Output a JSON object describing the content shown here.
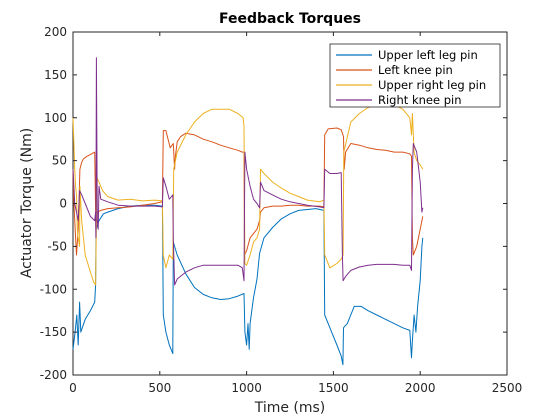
{
  "chart_data": {
    "type": "line",
    "title": "Feedback Torques",
    "xlabel": "Time (ms)",
    "ylabel": "Actuator Torque (Nm)",
    "xlim": [
      0,
      2500
    ],
    "ylim": [
      -200,
      200
    ],
    "xticks": [
      0,
      500,
      1000,
      1500,
      2000,
      2500
    ],
    "yticks": [
      -200,
      -150,
      -100,
      -50,
      0,
      50,
      100,
      150,
      200
    ],
    "grid": false,
    "legend_position": "top-right",
    "series": [
      {
        "name": "Upper left leg pin",
        "color": "#0072BD",
        "points": [
          [
            0,
            -170
          ],
          [
            12,
            -150
          ],
          [
            22,
            -130
          ],
          [
            30,
            -165
          ],
          [
            38,
            -115
          ],
          [
            45,
            -150
          ],
          [
            70,
            -135
          ],
          [
            100,
            -125
          ],
          [
            125,
            -115
          ],
          [
            130,
            -95
          ],
          [
            133,
            -30
          ],
          [
            150,
            -20
          ],
          [
            175,
            -12
          ],
          [
            200,
            -10
          ],
          [
            260,
            -6
          ],
          [
            330,
            -3
          ],
          [
            400,
            -2
          ],
          [
            470,
            -2
          ],
          [
            515,
            -3
          ],
          [
            520,
            -130
          ],
          [
            535,
            -150
          ],
          [
            555,
            -165
          ],
          [
            575,
            -175
          ],
          [
            578,
            -45
          ],
          [
            600,
            -60
          ],
          [
            650,
            -82
          ],
          [
            700,
            -98
          ],
          [
            750,
            -106
          ],
          [
            800,
            -110
          ],
          [
            850,
            -112
          ],
          [
            900,
            -111
          ],
          [
            950,
            -108
          ],
          [
            985,
            -105
          ],
          [
            990,
            -150
          ],
          [
            1000,
            -165
          ],
          [
            1008,
            -140
          ],
          [
            1015,
            -170
          ],
          [
            1020,
            -140
          ],
          [
            1040,
            -110
          ],
          [
            1060,
            -88
          ],
          [
            1075,
            -58
          ],
          [
            1100,
            -40
          ],
          [
            1150,
            -28
          ],
          [
            1200,
            -18
          ],
          [
            1250,
            -12
          ],
          [
            1300,
            -8
          ],
          [
            1350,
            -7
          ],
          [
            1400,
            -6
          ],
          [
            1445,
            -8
          ],
          [
            1450,
            -130
          ],
          [
            1480,
            -145
          ],
          [
            1520,
            -165
          ],
          [
            1545,
            -178
          ],
          [
            1555,
            -188
          ],
          [
            1558,
            -145
          ],
          [
            1580,
            -140
          ],
          [
            1620,
            -120
          ],
          [
            1660,
            -120
          ],
          [
            1700,
            -125
          ],
          [
            1750,
            -130
          ],
          [
            1800,
            -135
          ],
          [
            1850,
            -140
          ],
          [
            1900,
            -145
          ],
          [
            1940,
            -148
          ],
          [
            1950,
            -180
          ],
          [
            1955,
            -160
          ],
          [
            1965,
            -130
          ],
          [
            1975,
            -150
          ],
          [
            1985,
            -120
          ],
          [
            2000,
            -90
          ],
          [
            2010,
            -50
          ],
          [
            2015,
            -40
          ]
        ]
      },
      {
        "name": "Left knee pin",
        "color": "#D95319",
        "points": [
          [
            0,
            40
          ],
          [
            5,
            0
          ],
          [
            15,
            -40
          ],
          [
            20,
            -60
          ],
          [
            30,
            -30
          ],
          [
            40,
            40
          ],
          [
            50,
            48
          ],
          [
            60,
            52
          ],
          [
            80,
            55
          ],
          [
            100,
            57
          ],
          [
            125,
            60
          ],
          [
            132,
            -30
          ],
          [
            140,
            -10
          ],
          [
            160,
            -8
          ],
          [
            200,
            -6
          ],
          [
            260,
            -5
          ],
          [
            330,
            -4
          ],
          [
            400,
            -2
          ],
          [
            470,
            0
          ],
          [
            515,
            2
          ],
          [
            520,
            85
          ],
          [
            535,
            85
          ],
          [
            560,
            65
          ],
          [
            578,
            70
          ],
          [
            585,
            40
          ],
          [
            590,
            55
          ],
          [
            600,
            72
          ],
          [
            620,
            78
          ],
          [
            650,
            82
          ],
          [
            700,
            80
          ],
          [
            750,
            75
          ],
          [
            800,
            72
          ],
          [
            850,
            68
          ],
          [
            900,
            65
          ],
          [
            950,
            62
          ],
          [
            975,
            60
          ],
          [
            985,
            60
          ],
          [
            988,
            -60
          ],
          [
            1000,
            -55
          ],
          [
            1020,
            -40
          ],
          [
            1060,
            -30
          ],
          [
            1075,
            -20
          ],
          [
            1080,
            -10
          ],
          [
            1100,
            -5
          ],
          [
            1150,
            -3
          ],
          [
            1200,
            -3
          ],
          [
            1250,
            -2
          ],
          [
            1300,
            -2
          ],
          [
            1350,
            -3
          ],
          [
            1420,
            -3
          ],
          [
            1445,
            -4
          ],
          [
            1450,
            80
          ],
          [
            1470,
            87
          ],
          [
            1520,
            88
          ],
          [
            1545,
            86
          ],
          [
            1558,
            78
          ],
          [
            1562,
            40
          ],
          [
            1570,
            60
          ],
          [
            1600,
            70
          ],
          [
            1650,
            68
          ],
          [
            1700,
            65
          ],
          [
            1750,
            63
          ],
          [
            1800,
            62
          ],
          [
            1850,
            60
          ],
          [
            1900,
            60
          ],
          [
            1940,
            58
          ],
          [
            1950,
            55
          ],
          [
            1955,
            -40
          ],
          [
            1960,
            -60
          ],
          [
            1980,
            -50
          ],
          [
            2000,
            -30
          ],
          [
            2015,
            -15
          ]
        ]
      },
      {
        "name": "Upper right leg pin",
        "color": "#EDB120",
        "points": [
          [
            0,
            100
          ],
          [
            5,
            70
          ],
          [
            10,
            40
          ],
          [
            15,
            20
          ],
          [
            20,
            10
          ],
          [
            25,
            -30
          ],
          [
            30,
            -40
          ],
          [
            38,
            -50
          ],
          [
            40,
            20
          ],
          [
            50,
            -20
          ],
          [
            70,
            -60
          ],
          [
            100,
            -80
          ],
          [
            120,
            -92
          ],
          [
            130,
            -95
          ],
          [
            138,
            30
          ],
          [
            150,
            25
          ],
          [
            170,
            15
          ],
          [
            200,
            8
          ],
          [
            260,
            4
          ],
          [
            330,
            5
          ],
          [
            400,
            3
          ],
          [
            470,
            4
          ],
          [
            515,
            3
          ],
          [
            520,
            -60
          ],
          [
            535,
            -75
          ],
          [
            555,
            -60
          ],
          [
            575,
            -65
          ],
          [
            580,
            40
          ],
          [
            600,
            60
          ],
          [
            650,
            80
          ],
          [
            700,
            95
          ],
          [
            750,
            105
          ],
          [
            800,
            110
          ],
          [
            850,
            110
          ],
          [
            900,
            110
          ],
          [
            950,
            105
          ],
          [
            980,
            100
          ],
          [
            985,
            90
          ],
          [
            990,
            -70
          ],
          [
            1000,
            -72
          ],
          [
            1020,
            -60
          ],
          [
            1040,
            -45
          ],
          [
            1060,
            -40
          ],
          [
            1075,
            -30
          ],
          [
            1080,
            40
          ],
          [
            1100,
            35
          ],
          [
            1150,
            25
          ],
          [
            1200,
            18
          ],
          [
            1250,
            12
          ],
          [
            1300,
            8
          ],
          [
            1350,
            4
          ],
          [
            1420,
            2
          ],
          [
            1445,
            4
          ],
          [
            1450,
            -60
          ],
          [
            1480,
            -75
          ],
          [
            1520,
            -70
          ],
          [
            1545,
            -65
          ],
          [
            1556,
            -60
          ],
          [
            1560,
            60
          ],
          [
            1600,
            95
          ],
          [
            1650,
            105
          ],
          [
            1700,
            112
          ],
          [
            1750,
            115
          ],
          [
            1800,
            118
          ],
          [
            1850,
            115
          ],
          [
            1900,
            110
          ],
          [
            1940,
            100
          ],
          [
            1950,
            80
          ],
          [
            1955,
            105
          ],
          [
            1965,
            60
          ],
          [
            1980,
            50
          ],
          [
            2000,
            45
          ],
          [
            2015,
            40
          ]
        ]
      },
      {
        "name": "Right knee pin",
        "color": "#7E2F8E",
        "points": [
          [
            0,
            40
          ],
          [
            5,
            20
          ],
          [
            10,
            0
          ],
          [
            20,
            -10
          ],
          [
            30,
            -20
          ],
          [
            38,
            15
          ],
          [
            50,
            10
          ],
          [
            70,
            0
          ],
          [
            100,
            -15
          ],
          [
            125,
            -20
          ],
          [
            130,
            -10
          ],
          [
            132,
            -40
          ],
          [
            135,
            170
          ],
          [
            140,
            -20
          ],
          [
            145,
            -30
          ],
          [
            150,
            20
          ],
          [
            160,
            5
          ],
          [
            200,
            2
          ],
          [
            260,
            -2
          ],
          [
            330,
            -3
          ],
          [
            400,
            -3
          ],
          [
            470,
            -3
          ],
          [
            515,
            -4
          ],
          [
            520,
            30
          ],
          [
            535,
            20
          ],
          [
            555,
            5
          ],
          [
            575,
            10
          ],
          [
            578,
            -40
          ],
          [
            585,
            -95
          ],
          [
            600,
            -88
          ],
          [
            650,
            -80
          ],
          [
            700,
            -75
          ],
          [
            750,
            -72
          ],
          [
            800,
            -72
          ],
          [
            850,
            -72
          ],
          [
            900,
            -72
          ],
          [
            950,
            -72
          ],
          [
            975,
            -75
          ],
          [
            985,
            -90
          ],
          [
            990,
            60
          ],
          [
            1000,
            40
          ],
          [
            1020,
            20
          ],
          [
            1040,
            5
          ],
          [
            1060,
            0
          ],
          [
            1075,
            -5
          ],
          [
            1080,
            25
          ],
          [
            1100,
            15
          ],
          [
            1150,
            10
          ],
          [
            1200,
            5
          ],
          [
            1250,
            2
          ],
          [
            1300,
            0
          ],
          [
            1350,
            -2
          ],
          [
            1420,
            -4
          ],
          [
            1445,
            -5
          ],
          [
            1450,
            40
          ],
          [
            1480,
            35
          ],
          [
            1520,
            35
          ],
          [
            1545,
            36
          ],
          [
            1552,
            -60
          ],
          [
            1556,
            -90
          ],
          [
            1570,
            -85
          ],
          [
            1600,
            -78
          ],
          [
            1650,
            -74
          ],
          [
            1700,
            -72
          ],
          [
            1750,
            -71
          ],
          [
            1800,
            -71
          ],
          [
            1850,
            -71
          ],
          [
            1900,
            -72
          ],
          [
            1940,
            -72
          ],
          [
            1950,
            -78
          ],
          [
            1955,
            40
          ],
          [
            1960,
            70
          ],
          [
            1980,
            60
          ],
          [
            2000,
            25
          ],
          [
            2010,
            -10
          ],
          [
            2015,
            -5
          ]
        ]
      }
    ]
  }
}
